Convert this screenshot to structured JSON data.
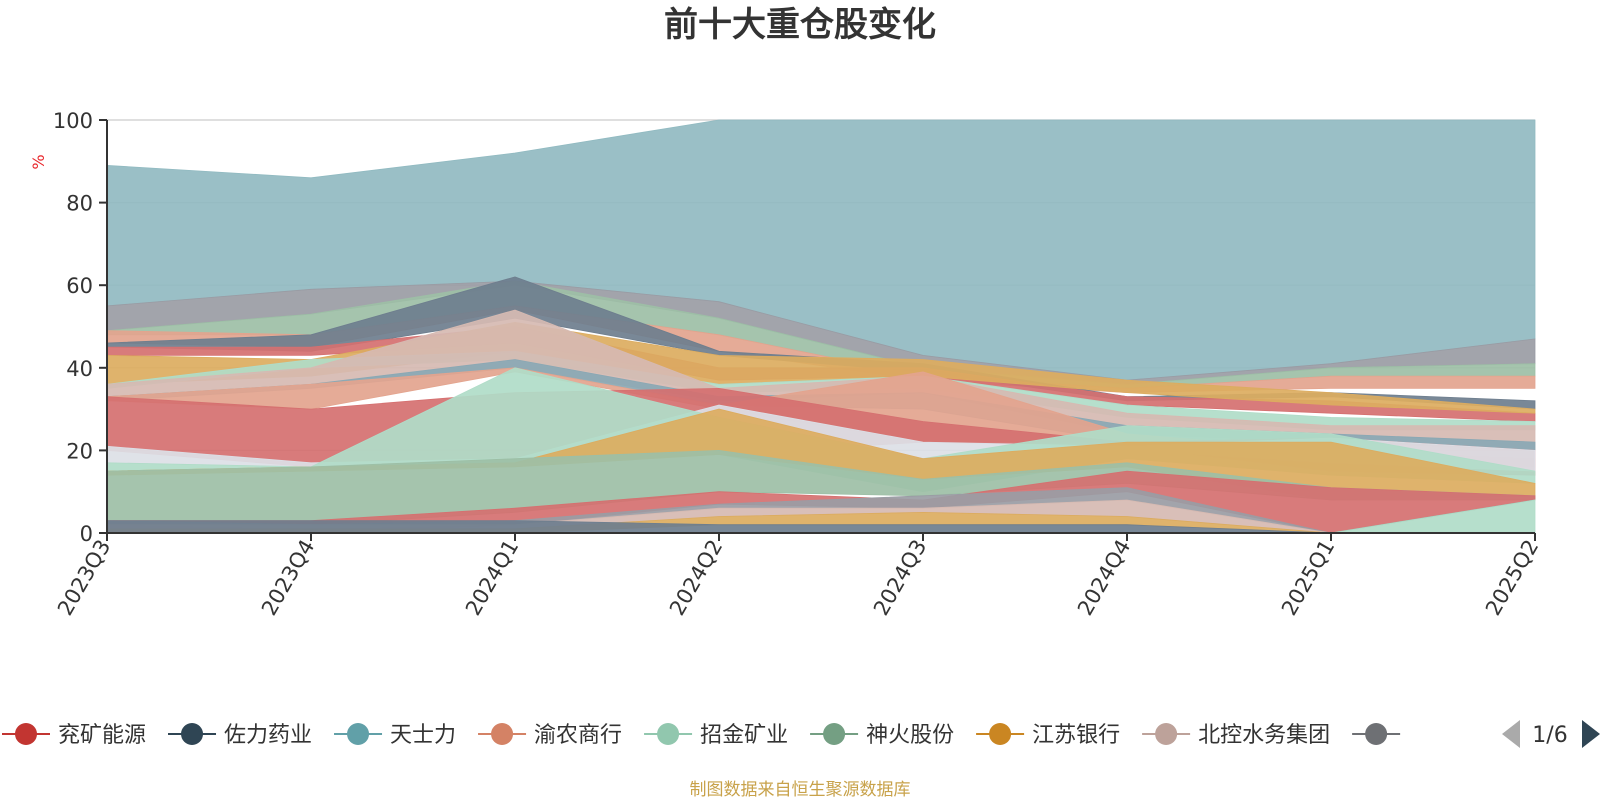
{
  "chart_data": {
    "type": "area",
    "stacked": false,
    "title": "前十大重仓股变化",
    "y_unit": "%",
    "ylim": [
      0,
      100
    ],
    "y_ticks": [
      0,
      20,
      40,
      60,
      80,
      100
    ],
    "grid": true,
    "legend_position": "bottom",
    "categories": [
      "2023Q3",
      "2023Q4",
      "2024Q1",
      "2024Q2",
      "2024Q3",
      "2024Q4",
      "2025Q1",
      "2025Q2"
    ],
    "bands": [
      {
        "color": "#91bac1",
        "upper": [
          89,
          86,
          92,
          100,
          100,
          100,
          100,
          100
        ],
        "lower": [
          55,
          59,
          61,
          56,
          43,
          37,
          41,
          47
        ]
      },
      {
        "color": "#9a9ca4",
        "upper": [
          55,
          59,
          61,
          56,
          43,
          37,
          41,
          47
        ],
        "lower": [
          49,
          53,
          60,
          52,
          40,
          36,
          40,
          41
        ]
      },
      {
        "color": "#9dbfa6",
        "upper": [
          49,
          53,
          61,
          52,
          40,
          36,
          40,
          41
        ],
        "lower": [
          48,
          48,
          55,
          48,
          38,
          35,
          38,
          38
        ]
      },
      {
        "color": "#e3a48e",
        "upper": [
          49,
          48,
          55,
          48,
          38,
          35,
          38,
          38
        ],
        "lower": [
          46,
          45,
          54,
          44,
          37,
          34,
          35,
          35
        ]
      },
      {
        "color": "#6e7e8e",
        "upper": [
          46,
          48,
          62,
          44,
          41,
          33,
          34,
          32
        ],
        "lower": [
          45,
          44,
          52,
          43,
          39,
          32,
          33,
          30
        ]
      },
      {
        "color": "#d57070",
        "upper": [
          45,
          45,
          50,
          40,
          40,
          33,
          32,
          29
        ],
        "lower": [
          43,
          43,
          46,
          37,
          38,
          31,
          29,
          27
        ]
      },
      {
        "color": "#dcac60",
        "upper": [
          43,
          42,
          51,
          43,
          42,
          37,
          34,
          30
        ],
        "lower": [
          36,
          38,
          44,
          36,
          38,
          34,
          31,
          29
        ]
      },
      {
        "color": "#b0dcc8",
        "upper": [
          36,
          42,
          44,
          36,
          38,
          31,
          28,
          27
        ],
        "lower": [
          35,
          40,
          42,
          34,
          35,
          28,
          25,
          25
        ]
      },
      {
        "color": "#d6bab2",
        "upper": [
          36,
          40,
          54,
          35,
          38,
          29,
          26,
          26
        ],
        "lower": [
          33,
          36,
          40,
          32,
          34,
          24,
          22,
          20
        ]
      },
      {
        "color": "#8aa8b4",
        "upper": [
          33,
          36,
          42,
          33,
          34,
          26,
          24,
          22
        ],
        "lower": [
          32,
          35,
          40,
          31,
          30,
          22,
          22,
          20
        ]
      },
      {
        "color": "#e3a48e",
        "upper": [
          33,
          36,
          40,
          31,
          39,
          24,
          20,
          18
        ],
        "lower": [
          32,
          30,
          39,
          30,
          22,
          22,
          18,
          16
        ]
      },
      {
        "color": "#d57070",
        "upper": [
          33,
          30,
          34,
          35,
          27,
          22,
          23,
          20
        ],
        "lower": [
          20,
          16,
          18,
          19,
          22,
          21,
          15,
          14
        ]
      },
      {
        "color": "#dcdfe6",
        "upper": [
          21,
          17,
          18,
          31,
          22,
          21,
          23,
          20
        ],
        "lower": [
          17,
          16,
          17,
          19,
          18,
          20,
          17,
          15
        ]
      },
      {
        "color": "#b0dcc8",
        "upper": [
          17,
          16,
          40,
          28,
          18,
          26,
          24,
          15
        ],
        "lower": [
          15,
          16,
          17,
          19,
          10,
          18,
          14,
          12
        ]
      },
      {
        "color": "#dcac60",
        "upper": [
          15,
          16,
          17,
          30,
          18,
          22,
          22,
          12
        ],
        "lower": [
          14,
          15,
          16,
          19,
          13,
          16,
          8,
          9
        ]
      },
      {
        "color": "#9dbfa6",
        "upper": [
          15,
          16,
          18,
          20,
          13,
          17,
          11,
          9
        ],
        "lower": [
          3,
          2,
          5,
          10,
          9,
          12,
          8,
          8
        ]
      },
      {
        "color": "#d57070",
        "upper": [
          3,
          3,
          6,
          10,
          8,
          15,
          11,
          9
        ],
        "lower": [
          0,
          0,
          2,
          7,
          6,
          10,
          0,
          8
        ]
      },
      {
        "color": "#9a9ca4",
        "upper": [
          3,
          2,
          3,
          7,
          9,
          11,
          0,
          8
        ],
        "lower": [
          2,
          1,
          2,
          6,
          6,
          8,
          0,
          8
        ]
      },
      {
        "color": "#d6bab2",
        "upper": [
          2,
          2,
          2,
          6,
          6,
          8,
          0,
          8
        ],
        "lower": [
          1,
          1,
          1,
          4,
          5,
          4,
          0,
          8
        ]
      },
      {
        "color": "#dcac60",
        "upper": [
          1,
          1,
          1,
          4,
          5,
          4,
          0,
          8
        ],
        "lower": [
          0,
          0,
          0,
          2,
          2,
          2,
          0,
          8
        ]
      },
      {
        "color": "#6e7e8e",
        "upper": [
          3,
          3,
          3,
          2,
          2,
          2,
          0,
          8
        ],
        "lower": [
          0,
          0,
          0,
          0,
          0,
          0,
          0,
          8
        ]
      },
      {
        "color": "#b0dcc8",
        "upper": [
          0,
          0,
          0,
          0,
          0,
          0,
          0,
          8
        ],
        "lower": [
          0,
          0,
          0,
          0,
          0,
          0,
          0,
          0
        ]
      }
    ],
    "legend": [
      {
        "name": "兖矿能源",
        "color": "#c23531"
      },
      {
        "name": "佐力药业",
        "color": "#2f4554"
      },
      {
        "name": "天士力",
        "color": "#61a0a8"
      },
      {
        "name": "渝农商行",
        "color": "#d48265"
      },
      {
        "name": "招金矿业",
        "color": "#91c7ae"
      },
      {
        "name": "神火股份",
        "color": "#749f83"
      },
      {
        "name": "江苏银行",
        "color": "#ca8622"
      },
      {
        "name": "北控水务集团",
        "color": "#bda29a"
      },
      {
        "name": "",
        "color": "#6e7074"
      }
    ],
    "pager": "1/6",
    "source": "制图数据来自恒生聚源数据库"
  }
}
